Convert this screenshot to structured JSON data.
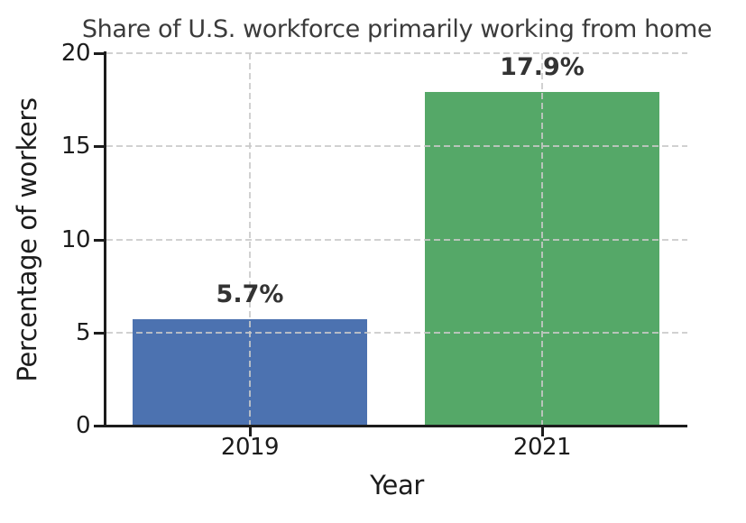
{
  "chart_data": {
    "type": "bar",
    "title": "Share of U.S. workforce primarily working from home",
    "xlabel": "Year",
    "ylabel": "Percentage of workers",
    "categories": [
      "2019",
      "2021"
    ],
    "values": [
      5.7,
      17.9
    ],
    "bar_labels": [
      "5.7%",
      "17.9%"
    ],
    "bar_colors": [
      "#4C72B0",
      "#55A868"
    ],
    "ylim": [
      0,
      20
    ],
    "yticks": [
      "0",
      "5",
      "10",
      "15",
      "20"
    ],
    "ytick_values": [
      0,
      5,
      10,
      15,
      20
    ],
    "grid": "both-axes-dashed",
    "grid_over_bars": true,
    "legend": "none",
    "colors": {
      "axis": "#1c1c1c",
      "title": "#3b3b3b",
      "tick_label": "#1c1c1c",
      "value_label": "#333333",
      "gridline": "#cccccc",
      "background": "#ffffff"
    }
  }
}
